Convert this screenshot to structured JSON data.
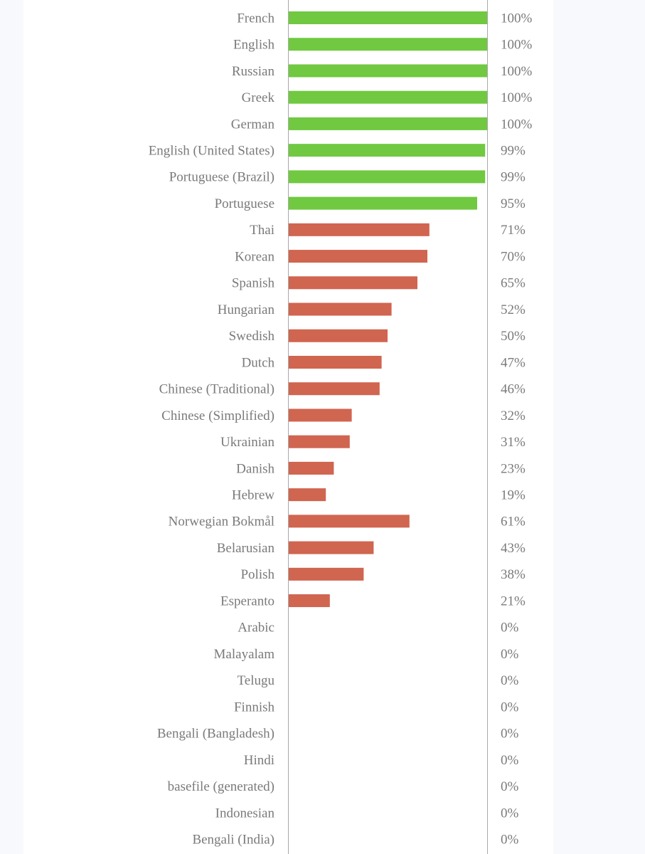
{
  "chart_data": {
    "type": "bar",
    "orientation": "horizontal",
    "title": "",
    "xlabel": "",
    "ylabel": "",
    "xlim": [
      0,
      100
    ],
    "categories": [
      "French",
      "English",
      "Russian",
      "Greek",
      "German",
      "English (United States)",
      "Portuguese (Brazil)",
      "Portuguese",
      "Thai",
      "Korean",
      "Spanish",
      "Hungarian",
      "Swedish",
      "Dutch",
      "Chinese (Traditional)",
      "Chinese (Simplified)",
      "Ukrainian",
      "Danish",
      "Hebrew",
      "Norwegian Bokmål",
      "Belarusian",
      "Polish",
      "Esperanto",
      "Arabic",
      "Malayalam",
      "Telugu",
      "Finnish",
      "Bengali (Bangladesh)",
      "Hindi",
      "basefile (generated)",
      "Indonesian",
      "Bengali (India)"
    ],
    "values": [
      100,
      100,
      100,
      100,
      100,
      99,
      99,
      95,
      71,
      70,
      65,
      52,
      50,
      47,
      46,
      32,
      31,
      23,
      19,
      61,
      43,
      38,
      21,
      0,
      0,
      0,
      0,
      0,
      0,
      0,
      0,
      0
    ],
    "value_labels": [
      "100%",
      "100%",
      "100%",
      "100%",
      "100%",
      "99%",
      "99%",
      "95%",
      "71%",
      "70%",
      "65%",
      "52%",
      "50%",
      "47%",
      "46%",
      "32%",
      "31%",
      "23%",
      "19%",
      "61%",
      "43%",
      "38%",
      "21%",
      "0%",
      "0%",
      "0%",
      "0%",
      "0%",
      "0%",
      "0%",
      "0%",
      "0%"
    ],
    "bar_colors": [
      "#70c940",
      "#70c940",
      "#70c940",
      "#70c940",
      "#70c940",
      "#70c940",
      "#70c940",
      "#70c940",
      "#d06550",
      "#d06550",
      "#d06550",
      "#d06550",
      "#d06550",
      "#d06550",
      "#d06550",
      "#d06550",
      "#d06550",
      "#d06550",
      "#d06550",
      "#d06550",
      "#d06550",
      "#d06550",
      "#d06550",
      "#d06550",
      "#d06550",
      "#d06550",
      "#d06550",
      "#d06550",
      "#d06550",
      "#d06550",
      "#d06550",
      "#d06550"
    ],
    "colors": {
      "complete": "#70c940",
      "incomplete": "#d06550",
      "text": "#7a7a7a",
      "axis": "#a9a9a9"
    }
  }
}
